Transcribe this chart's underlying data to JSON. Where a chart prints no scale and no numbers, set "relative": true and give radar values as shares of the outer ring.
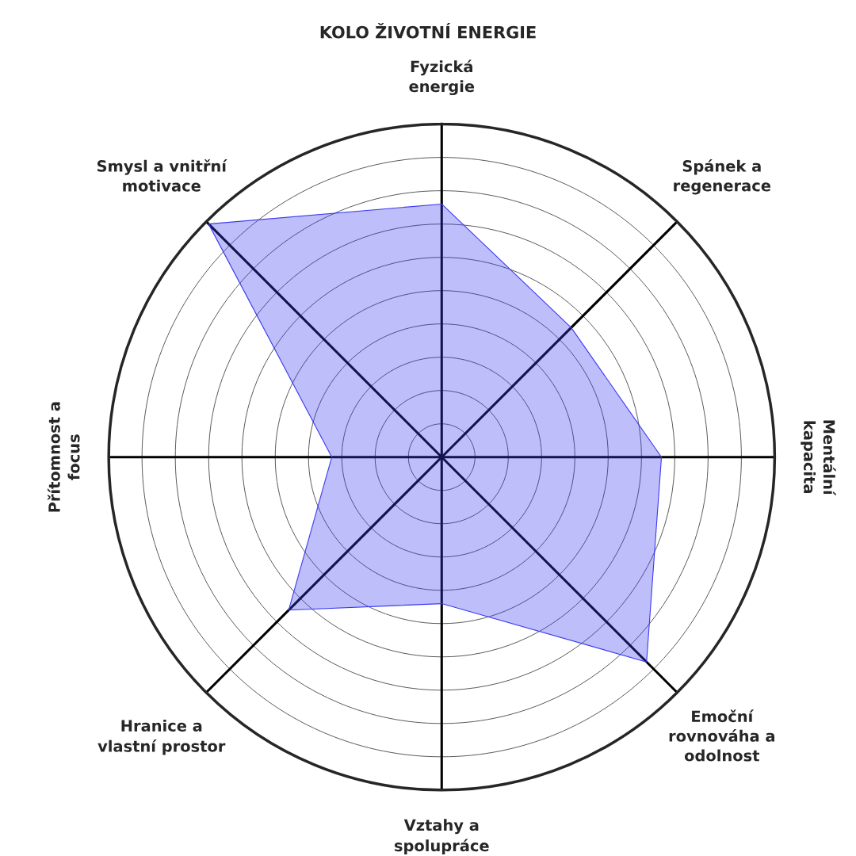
{
  "chart_data": {
    "type": "radar",
    "title": "KOLO ŽIVOTNÍ ENERGIE",
    "categories": [
      "Fyzická\nenergie",
      "Spánek a\nregenerace",
      "Mentální\nkapacita",
      "Emoční\nrovnováha a\nodolnost",
      "Vztahy a\nspolupráce",
      "Hranice a\nvlastní prostor",
      "Přítomnost a\nfocus",
      "Smysl a vnitřní\nmotivace"
    ],
    "relative": true,
    "grid": true,
    "marker": "none",
    "series": [
      {
        "color": "#3a3af0",
        "values": [
          0.76,
          0.55,
          0.66,
          0.87,
          0.44,
          0.65,
          0.33,
          0.99
        ]
      }
    ]
  }
}
